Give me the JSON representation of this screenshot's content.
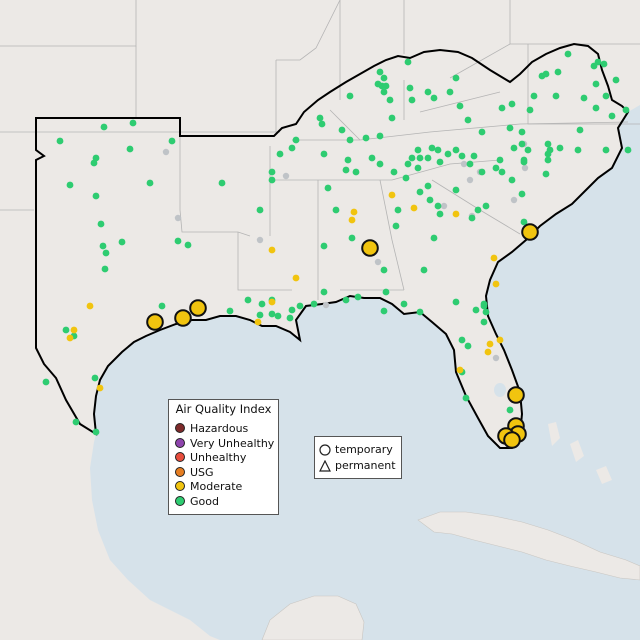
{
  "legend": {
    "title": "Air Quality Index",
    "categories": [
      {
        "label": "Hazardous",
        "color": "#7e2a2a"
      },
      {
        "label": "Very Unhealthy",
        "color": "#8e44ad"
      },
      {
        "label": "Unhealthy",
        "color": "#e74c3c"
      },
      {
        "label": "USG",
        "color": "#e67e22"
      },
      {
        "label": "Moderate",
        "color": "#f1c40f"
      },
      {
        "label": "Good",
        "color": "#2ecc71"
      }
    ],
    "shapes": [
      {
        "label": "temporary",
        "icon": "circle-icon"
      },
      {
        "label": "permanent",
        "icon": "triangle-icon"
      }
    ]
  },
  "colors": {
    "ocean": "#d6e2ea",
    "land": "#ece9e6",
    "good": "#2ecc71",
    "moderate": "#f1c40f",
    "no_data": "#bfc3c7",
    "region_outline": "#000000"
  }
}
